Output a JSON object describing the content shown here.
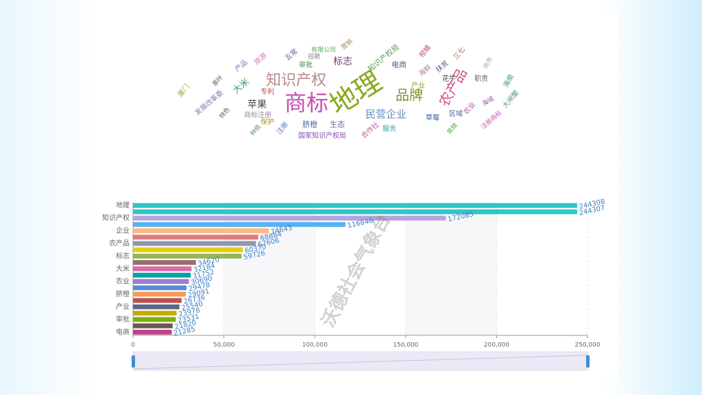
{
  "chart_data": [
    {
      "type": "wordcloud",
      "words": [
        {
          "text": "地理",
          "color": "#8aa81e"
        },
        {
          "text": "商标",
          "color": "#c64fb3"
        },
        {
          "text": "知识产权",
          "color": "#b58a88"
        },
        {
          "text": "品牌",
          "color": "#7f8f22"
        },
        {
          "text": "民营企业",
          "color": "#5e8cc0"
        },
        {
          "text": "农产品",
          "color": "#d04d8a"
        },
        {
          "text": "标志",
          "color": "#7a3a6a"
        },
        {
          "text": "苹果",
          "color": "#444444"
        },
        {
          "text": "商标注册",
          "color": "#9a8aa0"
        },
        {
          "text": "发展改革委",
          "color": "#8a78b0"
        },
        {
          "text": "大米",
          "color": "#3a9a6a"
        },
        {
          "text": "专利",
          "color": "#c0504d"
        },
        {
          "text": "审批",
          "color": "#4a8a4a"
        },
        {
          "text": "招聘",
          "color": "#888888"
        },
        {
          "text": "五常",
          "color": "#6a5a9a"
        },
        {
          "text": "有限公司",
          "color": "#5aaa5a"
        },
        {
          "text": "旅游",
          "color": "#d07ab0"
        },
        {
          "text": "产品",
          "color": "#8a6ac0"
        },
        {
          "text": "茶叶",
          "color": "#555555"
        },
        {
          "text": "厦门",
          "color": "#9ab040"
        },
        {
          "text": "特色",
          "color": "#8a4a6a"
        },
        {
          "text": "保护",
          "color": "#9a9a20"
        },
        {
          "text": "种植",
          "color": "#6aa06a"
        },
        {
          "text": "注册",
          "color": "#5a7ac0"
        },
        {
          "text": "脐橙",
          "color": "#4a6aa0"
        },
        {
          "text": "生态",
          "color": "#6a6a9a"
        },
        {
          "text": "国家知识产权局",
          "color": "#8a4ab0"
        },
        {
          "text": "合作社",
          "color": "#b05a9a"
        },
        {
          "text": "服务",
          "color": "#3aa0a0"
        },
        {
          "text": "电商",
          "color": "#6a4a9a"
        },
        {
          "text": "产业",
          "color": "#8aa030"
        },
        {
          "text": "知识产权局",
          "color": "#5aa05a"
        },
        {
          "text": "海鲜",
          "color": "#b07a9a"
        },
        {
          "text": "花牛",
          "color": "#444444"
        },
        {
          "text": "扶贫",
          "color": "#555577"
        },
        {
          "text": "三七",
          "color": "#a05a3a"
        },
        {
          "text": "柑橘",
          "color": "#c05a6a"
        },
        {
          "text": "农业",
          "color": "#b05aa0"
        },
        {
          "text": "区域",
          "color": "#4a5a9a"
        },
        {
          "text": "草莓",
          "color": "#3a5ab0"
        },
        {
          "text": "海南",
          "color": "#3aa07a"
        },
        {
          "text": "大闸蟹",
          "color": "#5a9a9a"
        },
        {
          "text": "注册商标",
          "color": "#c05ab0"
        },
        {
          "text": "黄精",
          "color": "#6ab06a"
        },
        {
          "text": "商务",
          "color": "#aaaaaa"
        },
        {
          "text": "职责",
          "color": "#666666"
        },
        {
          "text": "海域",
          "color": "#9a5a9a"
        },
        {
          "text": "营销",
          "color": "#a08a5a"
        }
      ]
    },
    {
      "type": "hbar",
      "categories": [
        "地理",
        null,
        "知识产权",
        null,
        "企业",
        null,
        "农产品",
        null,
        "标志",
        null,
        "大米",
        null,
        "农业",
        null,
        "脐橙",
        null,
        "产业",
        null,
        "审批",
        null,
        "电商"
      ],
      "values": [
        244308,
        244307,
        172085,
        116846,
        74643,
        68884,
        67606,
        60370,
        59726,
        34620,
        32184,
        31752,
        30690,
        29478,
        29091,
        26736,
        25540,
        23978,
        23531,
        21820,
        21285
      ],
      "colors": [
        "#2ec7c9",
        "#2ec7c9",
        "#b6a2de",
        "#5ab1ef",
        "#ffb980",
        "#d87a80",
        "#8d98b3",
        "#e5cf0d",
        "#97b552",
        "#95706d",
        "#dc69aa",
        "#07a2a4",
        "#9a7fd1",
        "#588dd5",
        "#f5994e",
        "#c05050",
        "#59678c",
        "#c9ab00",
        "#7eb00a",
        "#6f5553",
        "#c14089"
      ],
      "xlim": [
        0,
        250000
      ],
      "xticks": [
        0,
        {
          "value": 50000,
          "label": "50,000"
        },
        {
          "value": 100000,
          "label": "100,000"
        },
        {
          "value": 150000,
          "label": "150,000"
        },
        {
          "value": 200000,
          "label": "200,000"
        },
        {
          "value": 250000,
          "label": "250,000"
        }
      ],
      "grid": true,
      "watermark": "沃德社会气象台"
    }
  ]
}
